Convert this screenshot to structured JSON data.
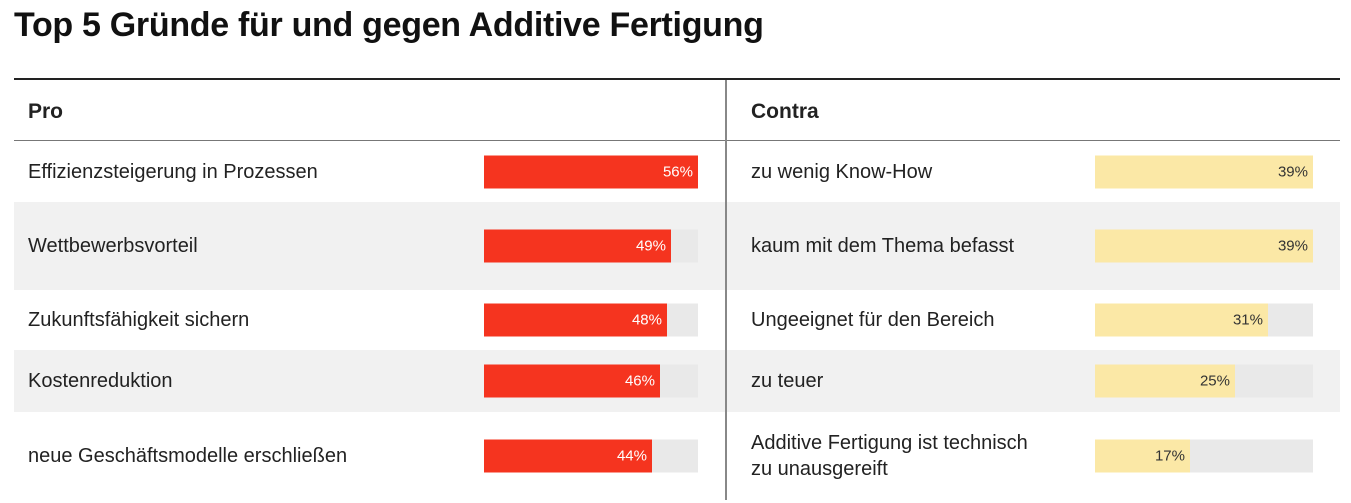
{
  "title": "Top 5 Gründe für und gegen Additive Fertigung",
  "colors": {
    "pro": "#f5341f",
    "contra": "#fbe8a6",
    "track": "#e9e9e9",
    "pro_value_text": "#ffffff",
    "contra_value_text": "#333333"
  },
  "chart_data": [
    {
      "type": "bar",
      "title": "Pro",
      "categories": [
        "Effizienzsteigerung in Prozessen",
        "Wettbewerbsvorteil",
        "Zukunftsfähigkeit sichern",
        "Kostenreduktion",
        "neue Geschäftsmodelle erschließen"
      ],
      "values": [
        56,
        49,
        48,
        46,
        44
      ],
      "labels": [
        "56%",
        "49%",
        "48%",
        "46%",
        "44%"
      ],
      "xlim": [
        0,
        56
      ]
    },
    {
      "type": "bar",
      "title": "Contra",
      "categories": [
        "zu wenig Know-How",
        "kaum mit dem Thema befasst",
        "Ungeeignet für den Bereich",
        "zu teuer",
        "Additive Fertigung ist technisch zu unausgereift"
      ],
      "values": [
        39,
        39,
        31,
        25,
        17
      ],
      "labels": [
        "39%",
        "39%",
        "31%",
        "25%",
        "17%"
      ],
      "xlim": [
        0,
        39
      ]
    }
  ]
}
